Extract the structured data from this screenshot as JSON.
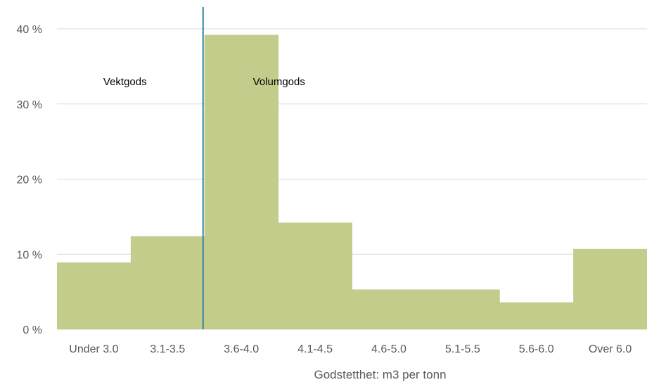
{
  "chart_data": {
    "type": "bar",
    "title": "",
    "xlabel": "Godstetthet: m3 per tonn",
    "ylabel": "",
    "categories": [
      "Under 3.0",
      "3.1-3.5",
      "3.6-4.0",
      "4.1-4.5",
      "4.6-5.0",
      "5.1-5.5",
      "5.6-6.0",
      "Over 6.0"
    ],
    "values": [
      8.9,
      12.4,
      39.2,
      14.2,
      5.3,
      5.3,
      3.6,
      10.7
    ],
    "value_unit": "%",
    "ylim": [
      0,
      40
    ],
    "yticks": [
      0,
      10,
      20,
      30,
      40
    ],
    "ytick_labels": [
      "0 %",
      "10 %",
      "20 %",
      "30 %",
      "40 %"
    ],
    "grid": true,
    "legend": "none",
    "divider": {
      "between_categories": [
        "3.1-3.5",
        "3.6-4.0"
      ],
      "color": "#31859C"
    },
    "annotations": [
      {
        "text": "Vektgods",
        "side": "left-of-divider"
      },
      {
        "text": "Volumgods",
        "side": "right-of-divider"
      }
    ],
    "colors": {
      "bar": "#C4CC8C",
      "grid": "#D9D9D9",
      "text": "#595959"
    }
  }
}
